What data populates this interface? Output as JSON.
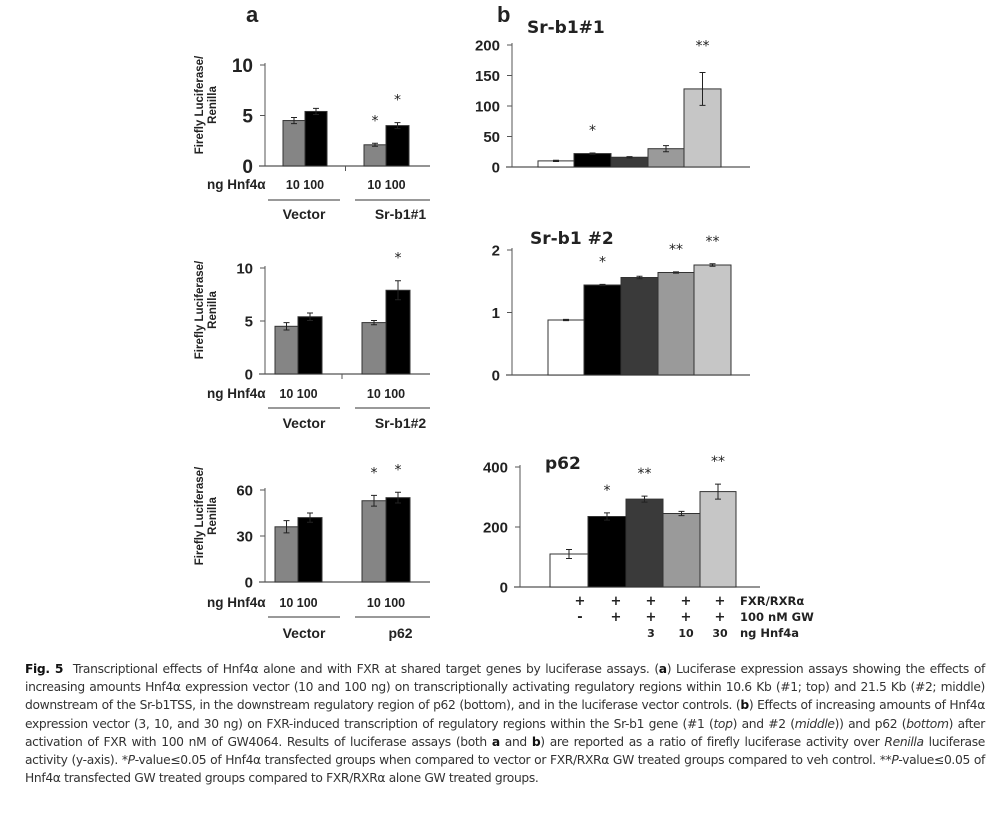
{
  "panel_letters": {
    "a": "a",
    "b": "b"
  },
  "caption": {
    "fig": "Fig. 5",
    "text_html": "Transcriptional effects of Hnf4α alone and with FXR at shared target genes by luciferase assays. (<b>a</b>) Luciferase expression assays showing the effects of increasing amounts Hnf4α expression vector (10 and 100 ng) on transcriptionally activating regulatory regions within 10.6 Kb (#1; top) and 21.5 Kb (#2; middle) downstream of the Sr-b1TSS, in the downstream regulatory region of p62 (bottom), and in the luciferase vector controls. (<b>b</b>) Effects of increasing amounts of Hnf4α expression vector (3, 10, and 30 ng) on FXR-induced transcription of regulatory regions within the Sr-b1 gene (#1 (<i>top</i>) and #2 (<i>middle</i>)) and p62 (<i>bottom</i>) after activation of FXR with 100 nM of GW4064. Results of luciferase assays (both <b>a</b> and <b>b</b>) are reported as a ratio of firefly luciferase activity over <i>Renilla</i> luciferase activity (y-axis). *<i>P</i>-value≤0.05 of Hnf4α transfected groups when compared to vector or FXR/RXRα GW treated groups compared to veh control. **<i>P</i>-value≤0.05 of Hnf4α transfected GW treated groups compared to FXR/RXRα alone GW treated groups."
  },
  "colors": {
    "a_low": "#858585",
    "a_high": "#000000",
    "b": [
      "#ffffff",
      "#000000",
      "#3a3a3a",
      "#9a9a9a",
      "#c6c6c6"
    ]
  },
  "chart_data": [
    {
      "id": "a1",
      "type": "bar",
      "title": "",
      "ylabel": "Firefly Luciferase/ Renilla",
      "ylim": [
        0,
        10
      ],
      "yticks": [
        0,
        5,
        10
      ],
      "row_label": "ng Hnf4α",
      "groups": [
        "Vector",
        "Sr-b1#1"
      ],
      "dose_labels": [
        "10 100",
        "10 100"
      ],
      "values": [
        4.5,
        5.4,
        2.1,
        4.0
      ],
      "errors": [
        0.3,
        0.3,
        0.15,
        0.3
      ],
      "sig": [
        "",
        "",
        "*",
        "*"
      ]
    },
    {
      "id": "a2",
      "type": "bar",
      "title": "",
      "ylabel": "Firefly Luciferase/ Renilla",
      "ylim": [
        0,
        10
      ],
      "yticks": [
        0,
        5,
        10
      ],
      "row_label": "ng Hnf4α",
      "groups": [
        "Vector",
        "Sr-b1#2"
      ],
      "dose_labels": [
        "10 100",
        "10 100"
      ],
      "values": [
        4.5,
        5.4,
        4.85,
        7.9
      ],
      "errors": [
        0.35,
        0.35,
        0.2,
        0.9
      ],
      "sig": [
        "",
        "",
        "",
        "*"
      ]
    },
    {
      "id": "a3",
      "type": "bar",
      "title": "",
      "ylabel": "Firefly Luciferase/ Renilla",
      "ylim": [
        0,
        60
      ],
      "yticks": [
        0,
        30,
        60
      ],
      "row_label": "ng Hnf4α",
      "groups": [
        "Vector",
        "p62"
      ],
      "dose_labels": [
        "10 100",
        "10 100"
      ],
      "values": [
        36,
        42,
        53,
        55
      ],
      "errors": [
        4,
        3,
        3.5,
        3.5
      ],
      "sig": [
        "",
        "",
        "*",
        "*"
      ]
    },
    {
      "id": "b1",
      "type": "bar",
      "title": "Sr-b1#1",
      "ylim": [
        0,
        200
      ],
      "yticks": [
        0,
        50,
        100,
        150,
        200
      ],
      "values": [
        10,
        22,
        16,
        30,
        128
      ],
      "errors": [
        1,
        1,
        1,
        5,
        27
      ],
      "sig": [
        "",
        "*",
        "",
        "",
        "**"
      ]
    },
    {
      "id": "b2",
      "type": "bar",
      "title": "Sr-b1 #2",
      "ylim": [
        0,
        2
      ],
      "yticks": [
        0,
        1,
        2
      ],
      "values": [
        0.88,
        1.44,
        1.56,
        1.64,
        1.76
      ],
      "errors": [
        0.01,
        0.01,
        0.02,
        0.01,
        0.02
      ],
      "sig": [
        "",
        "*",
        "",
        "**",
        "**"
      ]
    },
    {
      "id": "b3",
      "type": "bar",
      "title": "p62",
      "ylim": [
        0,
        400
      ],
      "yticks": [
        0,
        200,
        400
      ],
      "values": [
        110,
        235,
        293,
        245,
        318
      ],
      "errors": [
        15,
        12,
        10,
        7,
        25
      ],
      "sig": [
        "",
        "*",
        "**",
        "",
        "**"
      ],
      "treatment_rows": [
        {
          "label": "FXR/RXRα",
          "marks": [
            "+",
            "+",
            "+",
            "+",
            "+"
          ]
        },
        {
          "label": "100 nM GW",
          "marks": [
            "-",
            "+",
            "+",
            "+",
            "+"
          ]
        },
        {
          "label": "ng Hnf4a",
          "marks": [
            "",
            "",
            "3",
            "10",
            "30"
          ]
        }
      ]
    }
  ]
}
